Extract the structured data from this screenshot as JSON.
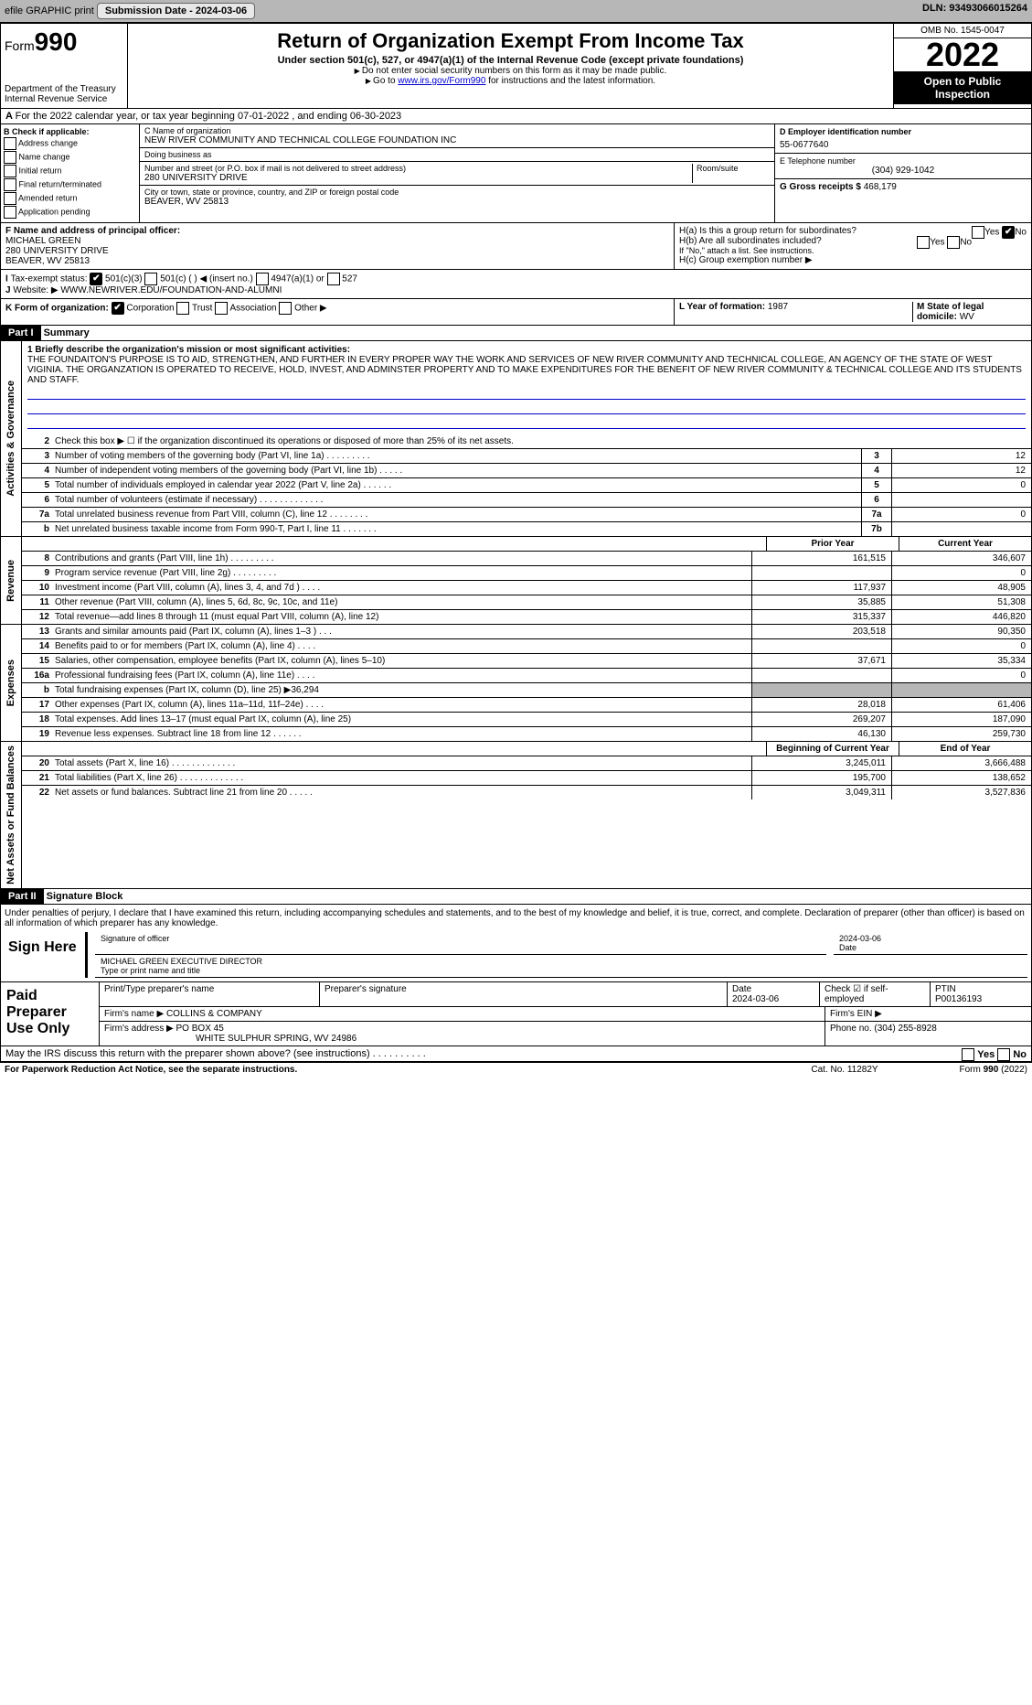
{
  "topbar": {
    "efile": "efile GRAPHIC print",
    "submit_btn": "Submission Date - 2024-03-06",
    "dln": "DLN: 93493066015264"
  },
  "hdr": {
    "form_pre": "Form",
    "form_no": "990",
    "dept": "Department of the Treasury",
    "irs": "Internal Revenue Service",
    "title": "Return of Organization Exempt From Income Tax",
    "sub": "Under section 501(c), 527, or 4947(a)(1) of the Internal Revenue Code (except private foundations)",
    "note1": "Do not enter social security numbers on this form as it may be made public.",
    "note2_pre": "Go to ",
    "note2_link": "www.irs.gov/Form990",
    "note2_post": " for instructions and the latest information.",
    "omb": "OMB No. 1545-0047",
    "year": "2022",
    "inspect": "Open to Public Inspection"
  },
  "rowA": "For the 2022 calendar year, or tax year beginning 07-01-2022    , and ending 06-30-2023",
  "B": {
    "hdr": "B Check if applicable:",
    "items": [
      "Address change",
      "Name change",
      "Initial return",
      "Final return/terminated",
      "Amended return",
      "Application pending"
    ]
  },
  "C": {
    "name_lbl": "C Name of organization",
    "name": "NEW RIVER COMMUNITY AND TECHNICAL COLLEGE FOUNDATION INC",
    "dba_lbl": "Doing business as",
    "dba": "",
    "addr_lbl": "Number and street (or P.O. box if mail is not delivered to street address)",
    "room_lbl": "Room/suite",
    "addr": "280 UNIVERSITY DRIVE",
    "city_lbl": "City or town, state or province, country, and ZIP or foreign postal code",
    "city": "BEAVER, WV  25813"
  },
  "D": {
    "lbl": "D Employer identification number",
    "val": "55-0677640"
  },
  "E": {
    "lbl": "E Telephone number",
    "val": "(304) 929-1042"
  },
  "G": {
    "lbl": "G Gross receipts $",
    "val": "468,179"
  },
  "F": {
    "lbl": "F  Name and address of principal officer:",
    "name": "MICHAEL GREEN",
    "addr": "280 UNIVERSITY DRIVE",
    "city": "BEAVER, WV  25813"
  },
  "H": {
    "a": "H(a)  Is this a group return for subordinates?",
    "a_no": "No",
    "b": "H(b)  Are all subordinates included?",
    "b_note": "If \"No,\" attach a list. See instructions.",
    "c": "H(c)  Group exemption number ▶"
  },
  "I": {
    "lbl": "Tax-exempt status:",
    "opts": [
      "501(c)(3)",
      "501(c) (  ) ◀ (insert no.)",
      "4947(a)(1) or",
      "527"
    ]
  },
  "J": {
    "lbl": "Website: ▶",
    "val": "WWW.NEWRIVER.EDU/FOUNDATION-AND-ALUMNI"
  },
  "K": {
    "lbl": "K Form of organization:",
    "opts": [
      "Corporation",
      "Trust",
      "Association",
      "Other ▶"
    ]
  },
  "L": {
    "lbl": "L Year of formation:",
    "val": "1987"
  },
  "M": {
    "lbl": "M State of legal domicile:",
    "val": "WV"
  },
  "part1": "Part I",
  "part1t": "Summary",
  "mission_lbl": "1  Briefly describe the organization's mission or most significant activities:",
  "mission": "THE FOUNDAITON'S PURPOSE IS TO AID, STRENGTHEN, AND FURTHER IN EVERY PROPER WAY THE WORK AND SERVICES OF NEW RIVER COMMUNITY AND TECHNICAL COLLEGE, AN AGENCY OF THE STATE OF WEST VIGINIA. THE ORGANZATION IS OPERATED TO RECEIVE, HOLD, INVEST, AND ADMINSTER PROPERTY AND TO MAKE EXPENDITURES FOR THE BENEFIT OF NEW RIVER COMMUNITY & TECHNICAL COLLEGE AND ITS STUDENTS AND STAFF.",
  "gov": [
    {
      "n": "2",
      "d": "Check this box ▶ ☐  if the organization discontinued its operations or disposed of more than 25% of its net assets."
    },
    {
      "n": "3",
      "d": "Number of voting members of the governing body (Part VI, line 1a)   .    .    .    .    .    .    .    .    .",
      "b": "3",
      "v": "12"
    },
    {
      "n": "4",
      "d": "Number of independent voting members of the governing body (Part VI, line 1b)   .    .    .    .    .",
      "b": "4",
      "v": "12"
    },
    {
      "n": "5",
      "d": "Total number of individuals employed in calendar year 2022 (Part V, line 2a)   .    .    .    .    .    .",
      "b": "5",
      "v": "0"
    },
    {
      "n": "6",
      "d": "Total number of volunteers (estimate if necessary)   .    .    .    .    .    .    .    .    .    .    .    .    .",
      "b": "6",
      "v": ""
    },
    {
      "n": "7a",
      "d": "Total unrelated business revenue from Part VIII, column (C), line 12   .    .    .    .    .    .    .    .",
      "b": "7a",
      "v": "0"
    },
    {
      "n": "b",
      "d": "Net unrelated business taxable income from Form 990-T, Part I, line 11   .    .    .    .    .    .    .",
      "b": "7b",
      "v": ""
    }
  ],
  "yr": {
    "prior": "Prior Year",
    "current": "Current Year"
  },
  "rev": [
    {
      "n": "8",
      "d": "Contributions and grants (Part VIII, line 1h)   .    .    .    .    .    .    .    .    .",
      "p": "161,515",
      "c": "346,607"
    },
    {
      "n": "9",
      "d": "Program service revenue (Part VIII, line 2g)   .    .    .    .    .    .    .    .    .",
      "p": "",
      "c": "0"
    },
    {
      "n": "10",
      "d": "Investment income (Part VIII, column (A), lines 3, 4, and 7d )   .    .    .    .",
      "p": "117,937",
      "c": "48,905"
    },
    {
      "n": "11",
      "d": "Other revenue (Part VIII, column (A), lines 5, 6d, 8c, 9c, 10c, and 11e)",
      "p": "35,885",
      "c": "51,308"
    },
    {
      "n": "12",
      "d": "Total revenue—add lines 8 through 11 (must equal Part VIII, column (A), line 12)",
      "p": "315,337",
      "c": "446,820"
    }
  ],
  "exp": [
    {
      "n": "13",
      "d": "Grants and similar amounts paid (Part IX, column (A), lines 1–3 )   .    .    .",
      "p": "203,518",
      "c": "90,350"
    },
    {
      "n": "14",
      "d": "Benefits paid to or for members (Part IX, column (A), line 4)   .    .    .    .",
      "p": "",
      "c": "0"
    },
    {
      "n": "15",
      "d": "Salaries, other compensation, employee benefits (Part IX, column (A), lines 5–10)",
      "p": "37,671",
      "c": "35,334"
    },
    {
      "n": "16a",
      "d": "Professional fundraising fees (Part IX, column (A), line 11e)   .    .    .    .",
      "p": "",
      "c": "0"
    },
    {
      "n": "b",
      "d": "Total fundraising expenses (Part IX, column (D), line 25) ▶36,294",
      "grey": true
    },
    {
      "n": "17",
      "d": "Other expenses (Part IX, column (A), lines 11a–11d, 11f–24e)   .    .    .    .",
      "p": "28,018",
      "c": "61,406"
    },
    {
      "n": "18",
      "d": "Total expenses. Add lines 13–17 (must equal Part IX, column (A), line 25)",
      "p": "269,207",
      "c": "187,090"
    },
    {
      "n": "19",
      "d": "Revenue less expenses. Subtract line 18 from line 12   .    .    .    .    .    .",
      "p": "46,130",
      "c": "259,730"
    }
  ],
  "na_hdr": {
    "p": "Beginning of Current Year",
    "c": "End of Year"
  },
  "na": [
    {
      "n": "20",
      "d": "Total assets (Part X, line 16)   .    .    .    .    .    .    .    .    .    .    .    .    .",
      "p": "3,245,011",
      "c": "3,666,488"
    },
    {
      "n": "21",
      "d": "Total liabilities (Part X, line 26)   .    .    .    .    .    .    .    .    .    .    .    .    .",
      "p": "195,700",
      "c": "138,652"
    },
    {
      "n": "22",
      "d": "Net assets or fund balances. Subtract line 21 from line 20   .    .    .    .    .",
      "p": "3,049,311",
      "c": "3,527,836"
    }
  ],
  "part2": "Part II",
  "part2t": "Signature Block",
  "sig_decl": "Under penalties of perjury, I declare that I have examined this return, including accompanying schedules and statements, and to the best of my knowledge and belief, it is true, correct, and complete. Declaration of preparer (other than officer) is based on all information of which preparer has any knowledge.",
  "sign": {
    "here": "Sign Here",
    "sig_lbl": "Signature of officer",
    "date": "2024-03-06",
    "date_lbl": "Date",
    "name": "MICHAEL GREEN  EXECUTIVE DIRECTOR",
    "name_lbl": "Type or print name and title"
  },
  "prep": {
    "lbl": "Paid Preparer Use Only",
    "h1": "Print/Type preparer's name",
    "h2": "Preparer's signature",
    "h3": "Date",
    "h3v": "2024-03-06",
    "h4": "Check ☑ if self-employed",
    "h5": "PTIN",
    "h5v": "P00136193",
    "firm_lbl": "Firm's name    ▶",
    "firm": "COLLINS & COMPANY",
    "ein_lbl": "Firm's EIN ▶",
    "addr_lbl": "Firm's address ▶",
    "addr": "PO BOX 45",
    "addr2": "WHITE SULPHUR SPRING, WV  24986",
    "phone_lbl": "Phone no.",
    "phone": "(304) 255-8928"
  },
  "discuss": "May the IRS discuss this return with the preparer shown above? (see instructions)   .    .    .    .    .    .    .    .    .    .",
  "footer": {
    "l": "For Paperwork Reduction Act Notice, see the separate instructions.",
    "c": "Cat. No. 11282Y",
    "r": "Form 990 (2022)"
  },
  "vlabels": {
    "gov": "Activities & Governance",
    "rev": "Revenue",
    "exp": "Expenses",
    "na": "Net Assets or Fund Balances"
  }
}
